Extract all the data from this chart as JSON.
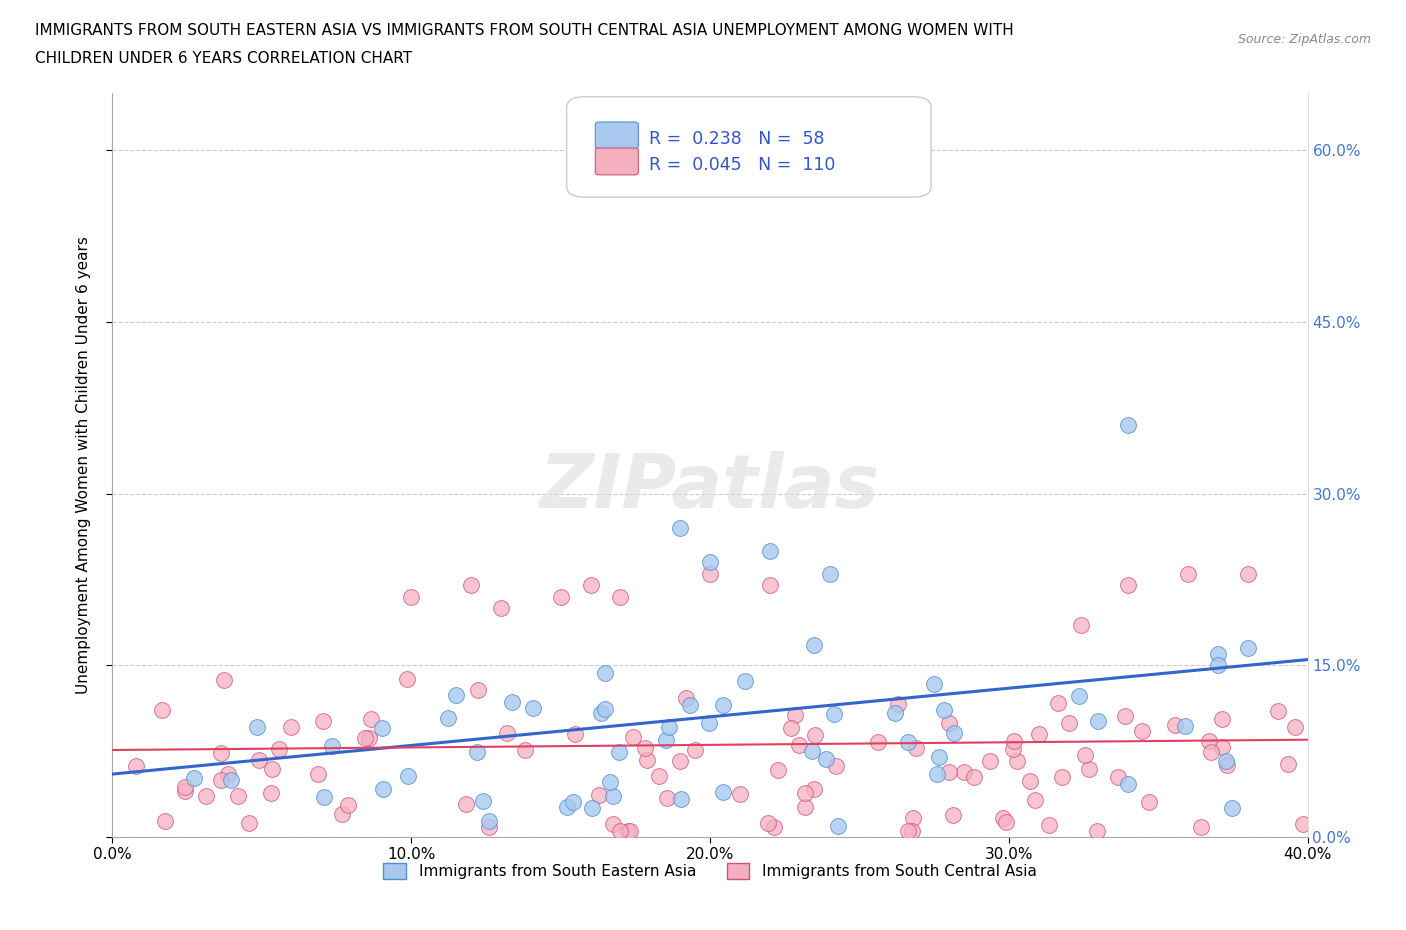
{
  "title_line1": "IMMIGRANTS FROM SOUTH EASTERN ASIA VS IMMIGRANTS FROM SOUTH CENTRAL ASIA UNEMPLOYMENT AMONG WOMEN WITH",
  "title_line2": "CHILDREN UNDER 6 YEARS CORRELATION CHART",
  "source": "Source: ZipAtlas.com",
  "ylabel": "Unemployment Among Women with Children Under 6 years",
  "xlim": [
    0.0,
    0.4
  ],
  "ylim": [
    0.0,
    0.65
  ],
  "yticks": [
    0.0,
    0.15,
    0.3,
    0.45,
    0.6
  ],
  "xticks": [
    0.0,
    0.1,
    0.2,
    0.3,
    0.4
  ],
  "series1_name": "Immigrants from South Eastern Asia",
  "series1_face": "#a8c8f0",
  "series1_edge": "#5090d0",
  "series1_line": "#3366cc",
  "series1_R": 0.238,
  "series1_N": 58,
  "series2_name": "Immigrants from South Central Asia",
  "series2_face": "#f5b0c0",
  "series2_edge": "#d05080",
  "series2_line": "#e04060",
  "series2_R": 0.045,
  "series2_N": 110,
  "bg": "#ffffff",
  "grid_color": "#cccccc",
  "watermark": "ZIPatlas",
  "tick_color_right": "#4477cc",
  "legend_text_color": "#3355cc"
}
